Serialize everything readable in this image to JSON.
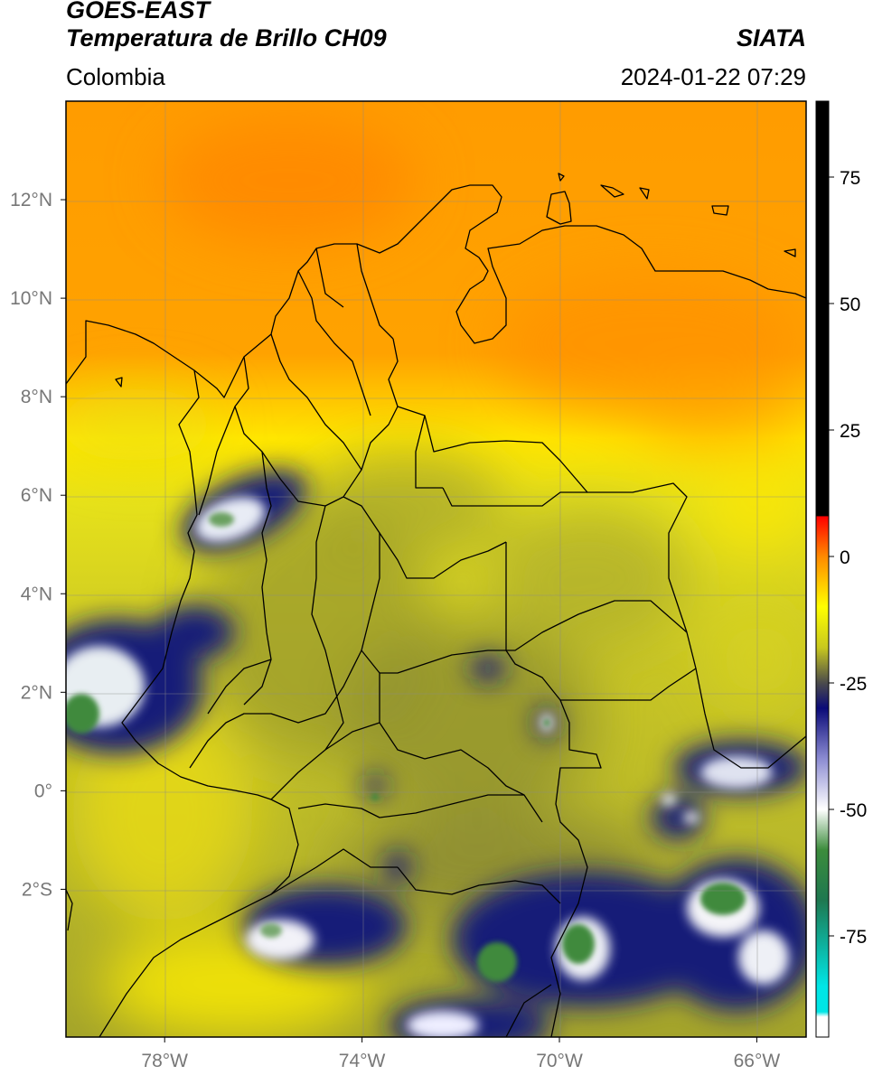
{
  "header": {
    "satellite": "GOES-EAST",
    "product": "Temperatura de Brillo CH09",
    "organization": "SIATA",
    "region": "Colombia",
    "timestamp": "2024-01-22 07:29"
  },
  "chart_data": {
    "type": "heatmap",
    "title": "Temperatura de Brillo CH09",
    "xlabel": "",
    "ylabel": "",
    "xlim": [
      -80,
      -65
    ],
    "ylim": [
      -5,
      14
    ],
    "x_ticks": [
      {
        "value": -78,
        "label": "78°W"
      },
      {
        "value": -74,
        "label": "74°W"
      },
      {
        "value": -70,
        "label": "70°W"
      },
      {
        "value": -66,
        "label": "66°W"
      }
    ],
    "y_ticks": [
      {
        "value": 12,
        "label": "12°N"
      },
      {
        "value": 10,
        "label": "10°N"
      },
      {
        "value": 8,
        "label": "8°N"
      },
      {
        "value": 6,
        "label": "6°N"
      },
      {
        "value": 4,
        "label": "4°N"
      },
      {
        "value": 2,
        "label": "2°N"
      },
      {
        "value": 0,
        "label": "0°"
      },
      {
        "value": -2,
        "label": "2°S"
      }
    ],
    "grid": true,
    "colorbar": {
      "position": "right",
      "range": [
        -95,
        90
      ],
      "ticks": [
        75,
        50,
        25,
        0,
        -25,
        -50,
        -75
      ],
      "stops": [
        {
          "value": 90,
          "color": "#000000"
        },
        {
          "value": 8,
          "color": "#000000"
        },
        {
          "value": 7.9,
          "color": "#ff0000"
        },
        {
          "value": 0,
          "color": "#ff8a00"
        },
        {
          "value": -10,
          "color": "#ffff00"
        },
        {
          "value": -18,
          "color": "#c8c81e"
        },
        {
          "value": -25,
          "color": "#4b4b4b"
        },
        {
          "value": -30,
          "color": "#0a0a78"
        },
        {
          "value": -40,
          "color": "#8c8cd2"
        },
        {
          "value": -50,
          "color": "#ffffff"
        },
        {
          "value": -58,
          "color": "#3c8c3c"
        },
        {
          "value": -68,
          "color": "#1e7850"
        },
        {
          "value": -85,
          "color": "#00e6e6"
        },
        {
          "value": -90,
          "color": "#00e6e6"
        },
        {
          "value": -91,
          "color": "#ffffff"
        },
        {
          "value": -95,
          "color": "#ffffff"
        }
      ]
    },
    "colors": {
      "warm": "#ff9400",
      "moderate": "#ffee00",
      "mid": "#b6b528",
      "cold": "#171a78",
      "very_cold": "#ffffff",
      "coldest": "#3f8c3a"
    }
  }
}
